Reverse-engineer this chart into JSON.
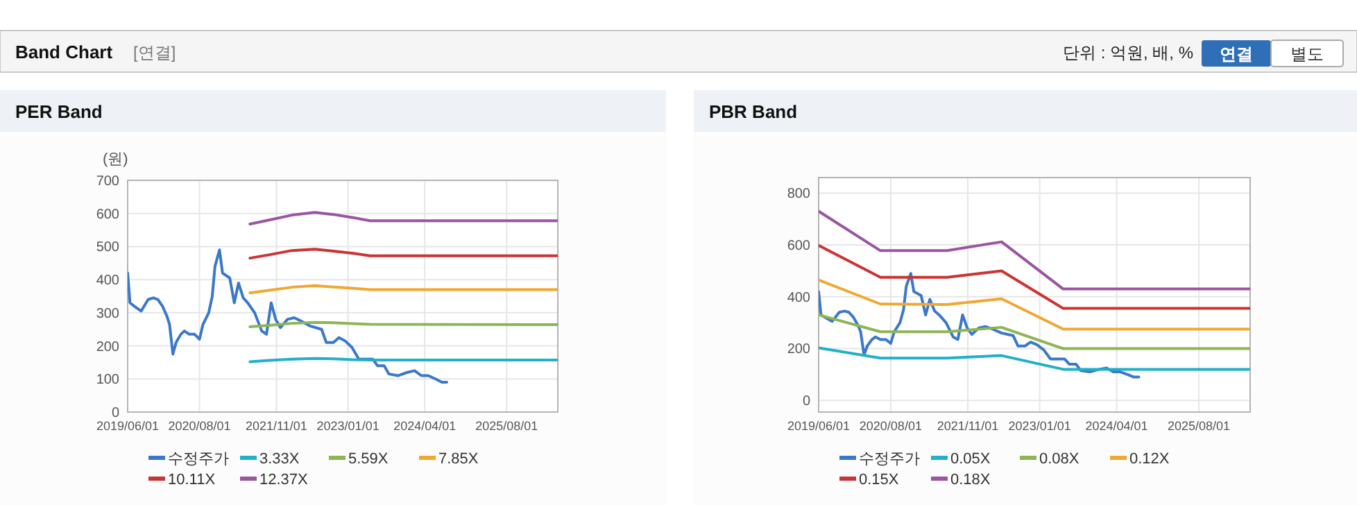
{
  "chart_data": [
    {
      "type": "other",
      "title": "Band Chart",
      "annotations": [
        "[연결]",
        "단위 : 억원, 배, %",
        "연결",
        "별도"
      ]
    },
    {
      "type": "line",
      "title": "PER Band",
      "ylabel": "(원)",
      "xlim": [
        "2019-06-01",
        "2026-06-01"
      ],
      "xticks": [
        {
          "value": "2019-06-01",
          "label": "2019/06/01"
        },
        {
          "value": "2020-08-01",
          "label": "2020/08/01"
        },
        {
          "value": "2021-11-01",
          "label": "2021/11/01"
        },
        {
          "value": "2023-01-01",
          "label": "2023/01/01"
        },
        {
          "value": "2024-04-01",
          "label": "2024/04/01"
        },
        {
          "value": "2025-08-01",
          "label": "2025/08/01"
        }
      ],
      "ylim": [
        0,
        700
      ],
      "yticks": [
        0,
        100,
        200,
        300,
        400,
        500,
        600,
        700
      ],
      "grid": true,
      "legend": "bottom",
      "marker": "none",
      "series": [
        {
          "name": "수정주가",
          "color": "#3a78c9",
          "x": [
            "2019-06-01",
            "2019-06-15",
            "2019-07-10",
            "2019-08-20",
            "2019-10-01",
            "2019-11-01",
            "2019-11-28",
            "2019-12-25",
            "2020-01-20",
            "2020-02-05",
            "2020-02-25",
            "2020-03-15",
            "2020-04-12",
            "2020-05-03",
            "2020-06-01",
            "2020-07-03",
            "2020-08-01",
            "2020-08-22",
            "2020-09-25",
            "2020-10-16",
            "2020-11-01",
            "2020-11-28",
            "2020-12-16",
            "2021-01-28",
            "2021-02-24",
            "2021-03-21",
            "2021-04-18",
            "2021-05-15",
            "2021-06-25",
            "2021-08-06",
            "2021-09-03",
            "2021-10-01",
            "2021-10-28",
            "2021-11-25",
            "2022-01-06",
            "2022-02-15",
            "2022-03-28",
            "2022-05-20",
            "2022-07-28",
            "2022-08-25",
            "2022-10-06",
            "2022-11-08",
            "2022-12-15",
            "2023-01-25",
            "2023-03-06",
            "2023-05-28",
            "2023-06-25",
            "2023-08-04",
            "2023-09-01",
            "2023-10-25",
            "2023-12-20",
            "2024-02-01",
            "2024-03-12",
            "2024-04-22",
            "2024-06-04",
            "2024-07-12",
            "2024-08-10"
          ],
          "values": [
            420,
            330,
            320,
            305,
            340,
            345,
            340,
            320,
            290,
            265,
            175,
            210,
            235,
            245,
            235,
            235,
            220,
            265,
            300,
            350,
            440,
            490,
            420,
            405,
            330,
            390,
            345,
            330,
            300,
            245,
            235,
            330,
            280,
            255,
            280,
            285,
            275,
            260,
            250,
            210,
            210,
            225,
            215,
            195,
            160,
            160,
            140,
            140,
            115,
            110,
            120,
            125,
            110,
            110,
            100,
            90,
            90
          ]
        },
        {
          "name": "3.33X",
          "color": "#21b0c8",
          "x": [
            "2021-05-28",
            "2021-09-18",
            "2022-02-01",
            "2022-06-18",
            "2022-10-06",
            "2023-01-25",
            "2023-05-12",
            "2026-06-01"
          ],
          "values": [
            152,
            156,
            160,
            162,
            161,
            158,
            157,
            157
          ]
        },
        {
          "name": "5.59X",
          "color": "#8db554",
          "x": [
            "2021-05-28",
            "2021-09-18",
            "2022-02-01",
            "2022-06-18",
            "2022-10-06",
            "2023-01-25",
            "2023-05-12",
            "2026-06-01"
          ],
          "values": [
            258,
            262,
            268,
            271,
            270,
            267,
            265,
            264
          ]
        },
        {
          "name": "7.85X",
          "color": "#f0a830",
          "x": [
            "2021-05-28",
            "2021-09-18",
            "2022-02-01",
            "2022-06-18",
            "2022-10-06",
            "2023-01-25",
            "2023-05-12",
            "2026-06-01"
          ],
          "values": [
            360,
            368,
            377,
            382,
            378,
            374,
            370,
            370
          ]
        },
        {
          "name": "10.11X",
          "color": "#cc3333",
          "x": [
            "2021-05-28",
            "2021-09-18",
            "2022-02-01",
            "2022-06-18",
            "2022-10-06",
            "2023-01-25",
            "2023-05-12",
            "2026-06-01"
          ],
          "values": [
            465,
            475,
            488,
            492,
            486,
            480,
            472,
            472
          ]
        },
        {
          "name": "12.37X",
          "color": "#9a55a0",
          "x": [
            "2021-05-28",
            "2021-09-18",
            "2022-02-01",
            "2022-06-18",
            "2022-10-06",
            "2023-01-25",
            "2023-05-12",
            "2026-06-01"
          ],
          "values": [
            568,
            580,
            595,
            603,
            597,
            588,
            578,
            578
          ]
        }
      ]
    },
    {
      "type": "line",
      "title": "PBR Band",
      "xlim": [
        "2019-06-01",
        "2026-06-01"
      ],
      "xticks": [
        {
          "value": "2019-06-01",
          "label": "2019/06/01"
        },
        {
          "value": "2020-08-01",
          "label": "2020/08/01"
        },
        {
          "value": "2021-11-01",
          "label": "2021/11/01"
        },
        {
          "value": "2023-01-01",
          "label": "2023/01/01"
        },
        {
          "value": "2024-04-01",
          "label": "2024/04/01"
        },
        {
          "value": "2025-08-01",
          "label": "2025/08/01"
        }
      ],
      "ylim": [
        -45,
        860
      ],
      "yticks": [
        0,
        200,
        400,
        600,
        800
      ],
      "grid": true,
      "legend": "bottom",
      "marker": "none",
      "series": [
        {
          "name": "수정주가",
          "color": "#3a78c9",
          "x": [
            "2019-06-01",
            "2019-06-15",
            "2019-07-10",
            "2019-08-20",
            "2019-10-01",
            "2019-11-01",
            "2019-11-28",
            "2019-12-25",
            "2020-01-20",
            "2020-02-05",
            "2020-02-25",
            "2020-03-15",
            "2020-04-12",
            "2020-05-03",
            "2020-06-01",
            "2020-07-03",
            "2020-08-01",
            "2020-08-22",
            "2020-09-25",
            "2020-10-16",
            "2020-11-01",
            "2020-11-28",
            "2020-12-16",
            "2021-01-28",
            "2021-02-24",
            "2021-03-21",
            "2021-04-18",
            "2021-05-15",
            "2021-06-25",
            "2021-08-06",
            "2021-09-03",
            "2021-10-01",
            "2021-10-28",
            "2021-11-25",
            "2022-01-06",
            "2022-02-15",
            "2022-03-28",
            "2022-05-20",
            "2022-07-28",
            "2022-08-25",
            "2022-10-06",
            "2022-11-08",
            "2022-12-15",
            "2023-01-25",
            "2023-03-06",
            "2023-05-28",
            "2023-06-25",
            "2023-08-04",
            "2023-09-01",
            "2023-10-25",
            "2023-12-20",
            "2024-02-01",
            "2024-03-12",
            "2024-04-22",
            "2024-06-04",
            "2024-07-12",
            "2024-08-10"
          ],
          "values": [
            420,
            330,
            320,
            305,
            340,
            345,
            340,
            320,
            290,
            265,
            175,
            210,
            235,
            245,
            235,
            235,
            220,
            265,
            300,
            350,
            440,
            490,
            420,
            405,
            330,
            390,
            345,
            330,
            300,
            245,
            235,
            330,
            280,
            255,
            280,
            285,
            275,
            260,
            250,
            210,
            210,
            225,
            215,
            195,
            160,
            160,
            140,
            140,
            115,
            110,
            120,
            125,
            110,
            110,
            100,
            90,
            90
          ]
        },
        {
          "name": "0.05X",
          "color": "#21b0c8",
          "x": [
            "2019-06-01",
            "2020-06-01",
            "2021-07-01",
            "2022-05-20",
            "2023-05-20",
            "2026-06-01"
          ],
          "values": [
            203,
            163,
            163,
            173,
            120,
            120
          ]
        },
        {
          "name": "0.08X",
          "color": "#8db554",
          "x": [
            "2019-06-01",
            "2020-06-01",
            "2021-07-01",
            "2022-05-20",
            "2023-05-20",
            "2026-06-01"
          ],
          "values": [
            330,
            265,
            265,
            282,
            200,
            200
          ]
        },
        {
          "name": "0.12X",
          "color": "#f0a830",
          "x": [
            "2019-06-01",
            "2020-06-01",
            "2021-07-01",
            "2022-05-20",
            "2023-05-20",
            "2026-06-01"
          ],
          "values": [
            465,
            372,
            370,
            392,
            275,
            275
          ]
        },
        {
          "name": "0.15X",
          "color": "#cc3333",
          "x": [
            "2019-06-01",
            "2020-06-01",
            "2021-07-01",
            "2022-05-20",
            "2023-05-20",
            "2026-06-01"
          ],
          "values": [
            598,
            475,
            475,
            500,
            355,
            355
          ]
        },
        {
          "name": "0.18X",
          "color": "#9a55a0",
          "x": [
            "2019-06-01",
            "2020-06-01",
            "2021-07-01",
            "2022-05-20",
            "2023-05-20",
            "2026-06-01"
          ],
          "values": [
            730,
            578,
            578,
            612,
            430,
            430
          ]
        }
      ]
    }
  ]
}
